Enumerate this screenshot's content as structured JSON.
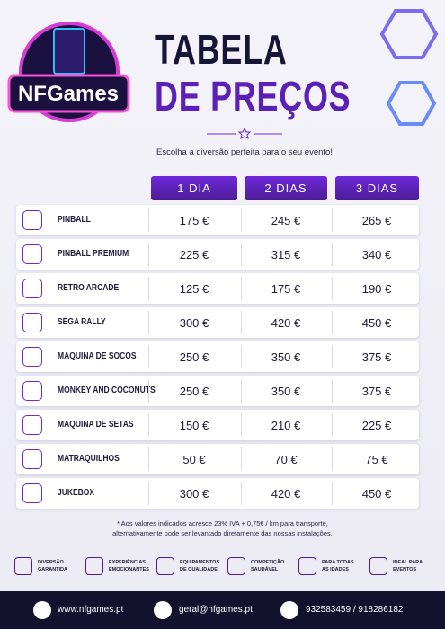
{
  "logo": {
    "text": "NFGames"
  },
  "header": {
    "title_line1": "TABELA",
    "title_line2": "DE PREÇOS",
    "subtitle": "Escolha a diversão perfeita para o seu evento!"
  },
  "table": {
    "columns": [
      "1 DIA",
      "2 DIAS",
      "3 DIAS"
    ],
    "rows": [
      [
        "PINBALL",
        "175 €",
        "245 €",
        "265 €"
      ],
      [
        "PINBALL PREMIUM",
        "225 €",
        "315 €",
        "340 €"
      ],
      [
        "RETRO ARCADE",
        "125 €",
        "175 €",
        "190 €"
      ],
      [
        "SEGA RALLY",
        "300 €",
        "420 €",
        "450 €"
      ],
      [
        "MAQUINA DE SOCOS",
        "250 €",
        "350 €",
        "375 €"
      ],
      [
        "MONKEY AND COCONUTS",
        "250 €",
        "350 €",
        "375 €"
      ],
      [
        "MAQUINA DE SETAS",
        "150 €",
        "210 €",
        "225 €"
      ],
      [
        "MATRAQUILHOS",
        "50 €",
        "70 €",
        "75 €"
      ],
      [
        "JUKEBOX",
        "300 €",
        "420 €",
        "450 €"
      ]
    ]
  },
  "note": {
    "line1": "* Aos valores indicados acresce 23% IVA + 0,75€ / km para transporte,",
    "line2": "alternativamente pode ser levantado diretamente das nossas instalações."
  },
  "features": [
    [
      "DIVERSÃO",
      "GARANTIDA"
    ],
    [
      "EXPERIÊNCIAS",
      "EMOCIONANTES"
    ],
    [
      "EQUIPAMENTOS",
      "DE QUALIDADE"
    ],
    [
      "COMPETIÇÃO",
      "SAUDÁVEL"
    ],
    [
      "PARA TODAS",
      "AS IDADES"
    ],
    [
      "IDEAL PARA",
      "EVENTOS"
    ]
  ],
  "footer": {
    "website": "www.nfgames.pt",
    "email": "geral@nfgames.pt",
    "phone": "932583459 / 918286182"
  }
}
